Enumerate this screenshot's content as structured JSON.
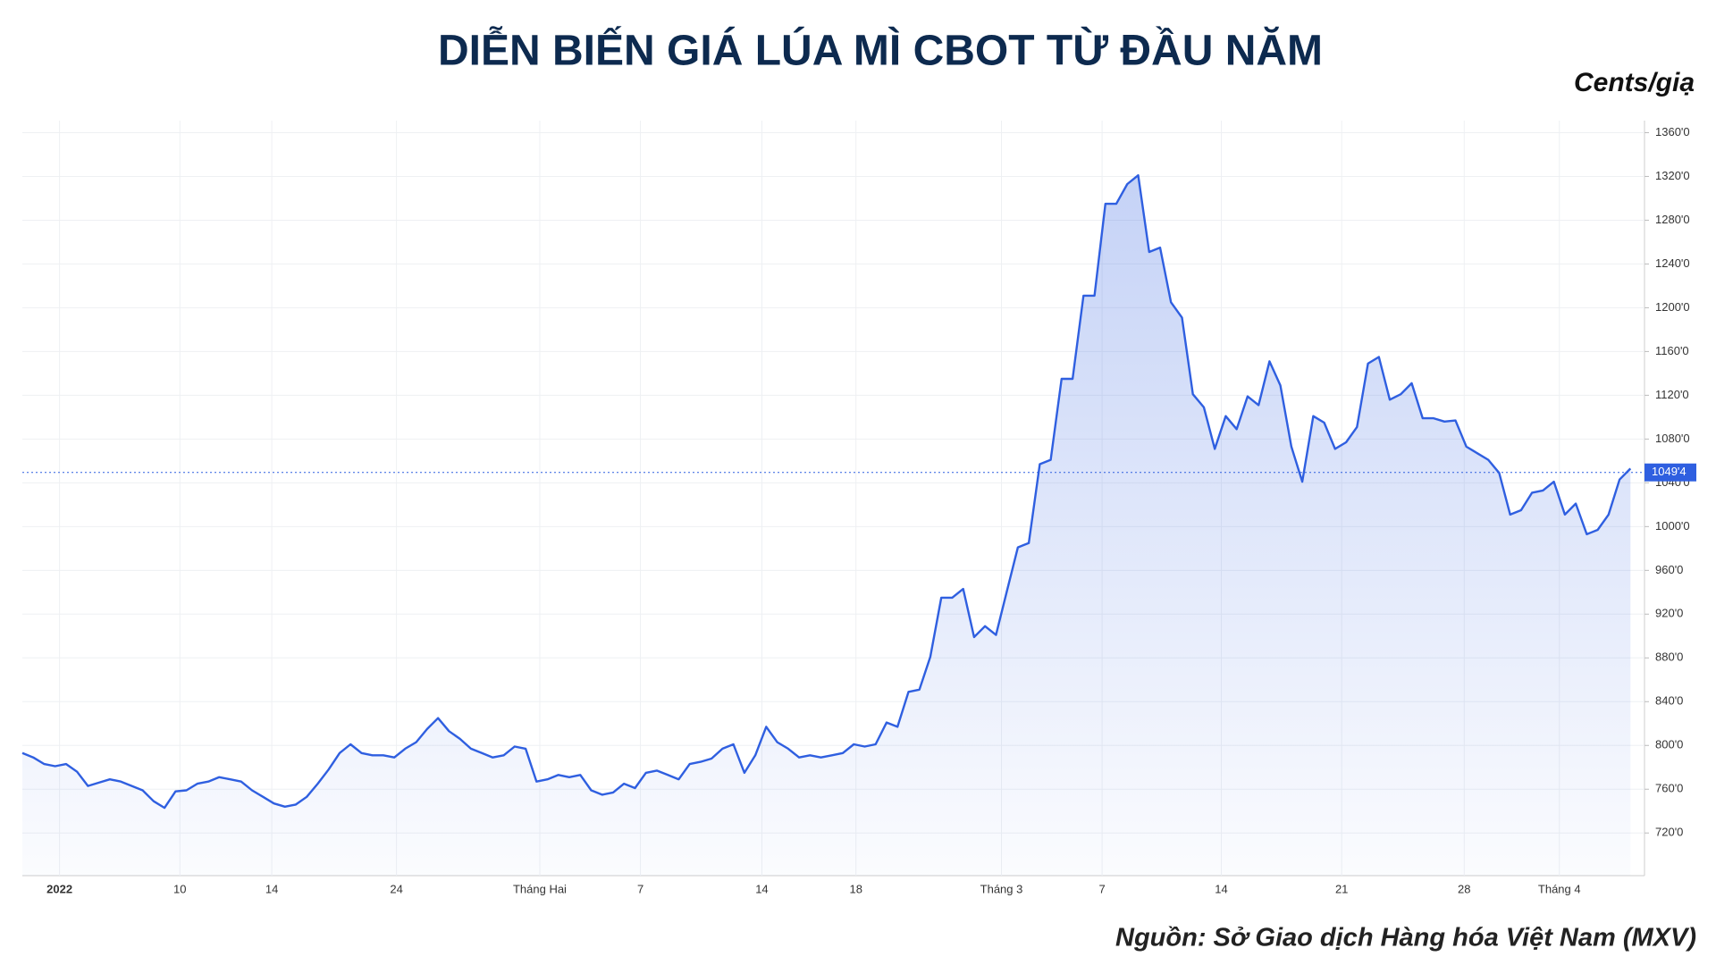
{
  "chart_data": {
    "type": "line",
    "title": "DIỄN BIẾN GIÁ LÚA MÌ CBOT TỪ ĐẦU NĂM",
    "unit_label": "Cents/giạ",
    "source": "Nguồn: Sở Giao dịch Hàng hóa Việt Nam (MXV)",
    "color": "#2f5fe0",
    "area": true,
    "grid": true,
    "x": [
      0,
      1,
      2,
      3,
      4,
      5,
      6,
      7,
      8,
      9,
      10,
      11,
      12,
      13,
      14,
      15,
      16,
      17,
      18,
      19,
      20,
      21,
      22,
      23,
      24,
      25,
      26,
      27,
      28,
      29,
      30,
      31,
      32,
      33,
      34,
      35,
      36,
      37,
      38,
      39,
      40,
      41,
      42,
      43,
      44,
      45,
      46,
      47,
      48,
      49,
      50,
      51,
      52,
      53,
      54,
      55,
      56,
      57,
      58,
      59,
      60,
      61,
      62,
      63,
      64,
      65,
      66,
      67,
      68,
      69,
      70,
      71,
      72,
      73,
      74,
      75,
      76,
      77,
      78,
      79,
      80,
      81,
      82,
      83,
      84,
      85,
      86,
      87,
      88,
      89,
      90,
      91,
      92,
      93,
      94,
      95,
      96,
      97,
      98,
      99,
      100,
      101,
      102,
      103,
      104,
      105,
      106,
      107,
      108,
      109,
      110,
      111,
      112,
      113,
      114,
      115,
      116,
      117,
      118,
      119,
      120,
      121,
      122,
      123,
      124,
      125,
      126,
      127,
      128,
      129,
      130,
      131,
      132,
      133,
      134,
      135,
      136,
      137,
      138,
      139,
      140,
      141,
      142,
      143,
      144,
      145,
      146,
      147
    ],
    "values": [
      793,
      789,
      783,
      781,
      783,
      776,
      763,
      766,
      769,
      767,
      763,
      759,
      749,
      743,
      758,
      759,
      765,
      767,
      771,
      769,
      767,
      759,
      753,
      747,
      744,
      746,
      753,
      765,
      778,
      793,
      801,
      793,
      791,
      791,
      789,
      797,
      803,
      815,
      825,
      813,
      806,
      797,
      793,
      789,
      791,
      799,
      797,
      767,
      769,
      773,
      771,
      773,
      759,
      755,
      757,
      765,
      761,
      775,
      777,
      773,
      769,
      783,
      785,
      788,
      797,
      801,
      775,
      791,
      817,
      803,
      797,
      789,
      791,
      789,
      791,
      793,
      801,
      799,
      801,
      821,
      817,
      849,
      851,
      881,
      935,
      935,
      943,
      899,
      909,
      901,
      941,
      981,
      985,
      1057,
      1061,
      1135,
      1135,
      1211,
      1211,
      1295,
      1295,
      1313,
      1321,
      1251,
      1255,
      1205,
      1191,
      1121,
      1109,
      1071,
      1101,
      1089,
      1119,
      1111,
      1151,
      1129,
      1073,
      1041,
      1101,
      1095,
      1071,
      1077,
      1091,
      1149,
      1155,
      1116,
      1121,
      1131,
      1099,
      1099,
      1096,
      1097,
      1073,
      1067,
      1061,
      1049,
      1011,
      1015,
      1031,
      1033,
      1041,
      1011,
      1021,
      993,
      997,
      1011,
      1043,
      1053
    ],
    "xlim": [
      0,
      147.3
    ],
    "xticks": [
      {
        "value": 3.4,
        "label": "2022"
      },
      {
        "value": 14.4,
        "label": "10"
      },
      {
        "value": 22.8,
        "label": "14"
      },
      {
        "value": 34.2,
        "label": "24"
      },
      {
        "value": 47.3,
        "label": "Tháng Hai"
      },
      {
        "value": 56.5,
        "label": "7"
      },
      {
        "value": 67.6,
        "label": "14"
      },
      {
        "value": 76.2,
        "label": "18"
      },
      {
        "value": 89.5,
        "label": "Tháng 3"
      },
      {
        "value": 98.7,
        "label": "7"
      },
      {
        "value": 109.6,
        "label": "14"
      },
      {
        "value": 120.6,
        "label": "21"
      },
      {
        "value": 131.8,
        "label": "28"
      },
      {
        "value": 140.5,
        "label": "Tháng 4"
      }
    ],
    "ylim": [
      681,
      1371
    ],
    "yticks": [
      {
        "value": 720,
        "label": "720'0"
      },
      {
        "value": 760,
        "label": "760'0"
      },
      {
        "value": 800,
        "label": "800'0"
      },
      {
        "value": 840,
        "label": "840'0"
      },
      {
        "value": 880,
        "label": "880'0"
      },
      {
        "value": 920,
        "label": "920'0"
      },
      {
        "value": 960,
        "label": "960'0"
      },
      {
        "value": 1000,
        "label": "1000'0"
      },
      {
        "value": 1040,
        "label": "1040'0"
      },
      {
        "value": 1080,
        "label": "1080'0"
      },
      {
        "value": 1120,
        "label": "1120'0"
      },
      {
        "value": 1160,
        "label": "1160'0"
      },
      {
        "value": 1200,
        "label": "1200'0"
      },
      {
        "value": 1240,
        "label": "1240'0"
      },
      {
        "value": 1280,
        "label": "1280'0"
      },
      {
        "value": 1320,
        "label": "1320'0"
      },
      {
        "value": 1360,
        "label": "1360'0"
      }
    ],
    "last_price": {
      "value": 1049.5,
      "label": "1049'4"
    }
  }
}
